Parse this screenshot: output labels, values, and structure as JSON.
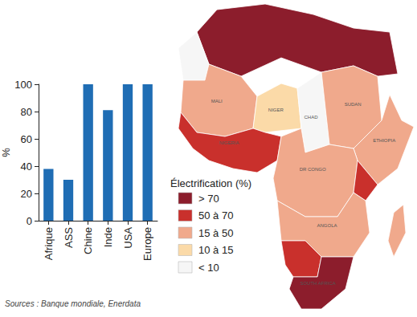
{
  "chart_data": {
    "type": "bar",
    "categories": [
      "Afrique",
      "ASS",
      "Chine",
      "Inde",
      "USA",
      "Europe"
    ],
    "values": [
      38,
      30,
      100,
      81,
      100,
      100
    ],
    "color": "#1f6db4",
    "y_label": "%",
    "ylim": [
      0,
      100
    ],
    "yticks": [
      0,
      20,
      40,
      60,
      80,
      100
    ],
    "grid": false
  },
  "map": {
    "legend_title": "Électrification (%)",
    "classes": [
      {
        "label": "> 70",
        "color": "#8c1d2c"
      },
      {
        "label": "50 à 70",
        "color": "#c9302c"
      },
      {
        "label": "15 à 50",
        "color": "#f0a98c"
      },
      {
        "label": "10 à 15",
        "color": "#fbdaa8"
      },
      {
        "label": "< 10",
        "color": "#f6f6f6"
      }
    ],
    "regions": [
      {
        "class": 0
      },
      {
        "class": 4
      },
      {
        "class": 2,
        "label": "MALI"
      },
      {
        "class": 3,
        "label": "NIGER"
      },
      {
        "class": 4,
        "label": "CHAD"
      },
      {
        "class": 2,
        "label": "SUDAN"
      },
      {
        "class": 2,
        "label": "ETHIOPIA"
      },
      {
        "class": 1,
        "label": "NIGERIA"
      },
      {
        "class": 2,
        "label": "DR CONGO"
      },
      {
        "class": 1
      },
      {
        "class": 2,
        "label": "ANGOLA"
      },
      {
        "class": 1
      },
      {
        "class": 0,
        "label": "SOUTH AFRICA"
      },
      {
        "class": 2
      }
    ]
  },
  "source": "Sources : Banque mondiale, Enerdata"
}
